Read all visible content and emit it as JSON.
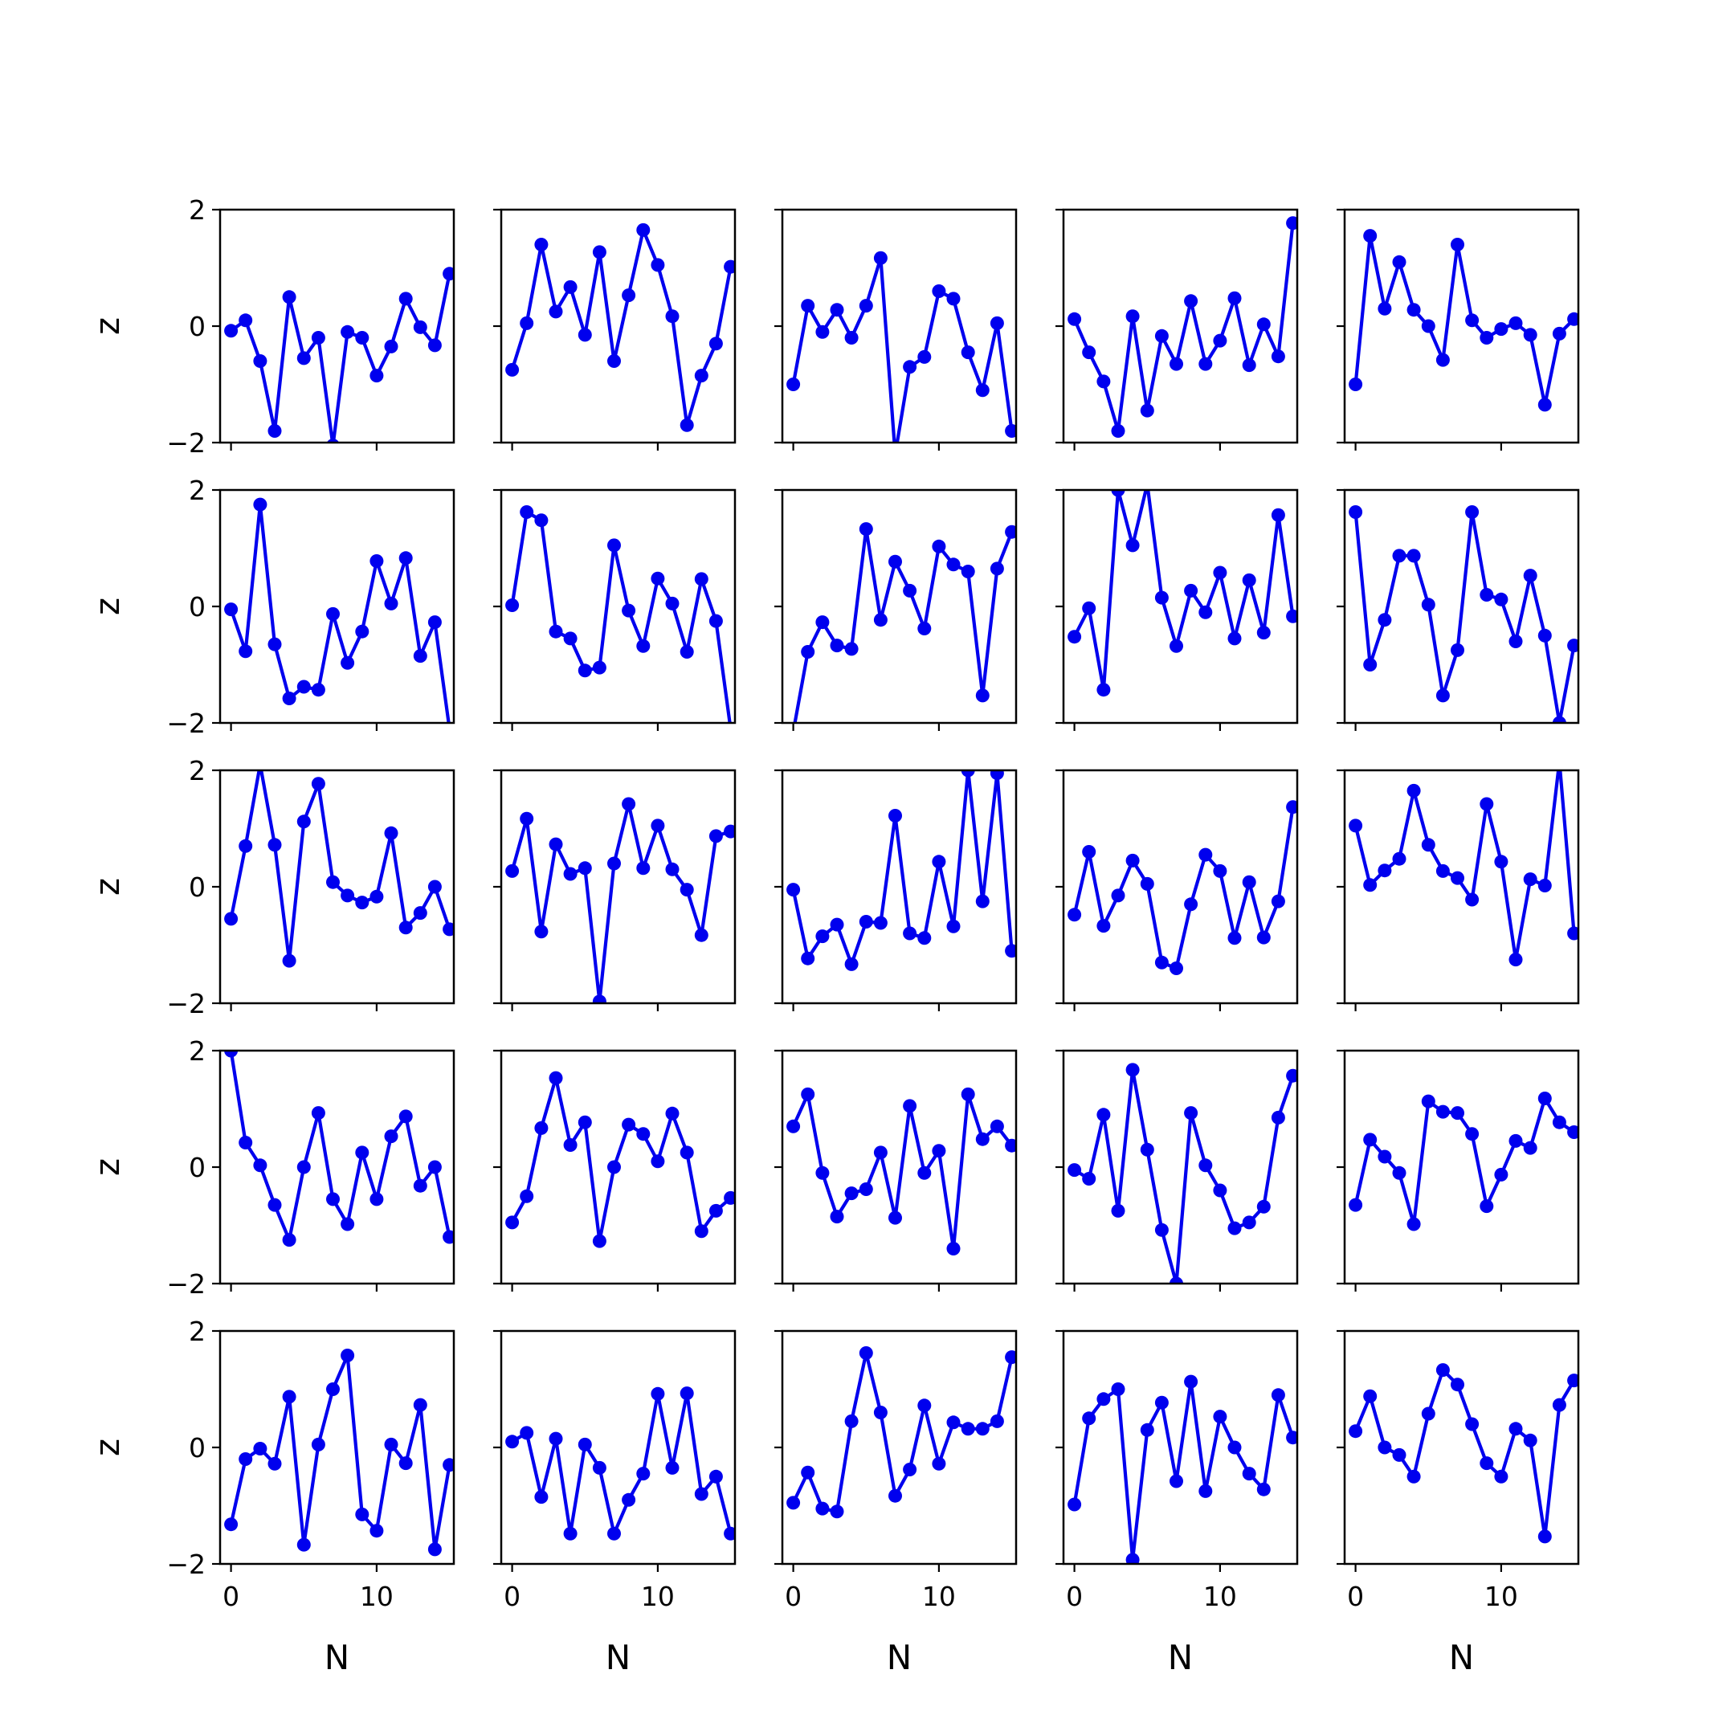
{
  "chart_data": {
    "type": "line",
    "layout": "5x5 grid of small multiples",
    "shared_x": true,
    "shared_y": true,
    "xlabel": "N",
    "ylabel": "z",
    "xlim": [
      -0.75,
      15.3
    ],
    "ylim": [
      -2,
      2
    ],
    "x_ticks": [
      0,
      10
    ],
    "x_tick_labels": [
      "0",
      "10"
    ],
    "y_ticks": [
      -2,
      0,
      2
    ],
    "y_tick_labels": [
      "−2",
      "0",
      "2"
    ],
    "grid": false,
    "legend": "none",
    "line_color": "#0000ee",
    "marker": "circle",
    "x": [
      0,
      1,
      2,
      3,
      4,
      5,
      6,
      7,
      8,
      9,
      10,
      11,
      12,
      13,
      14,
      15
    ],
    "panels": [
      [
        -0.08,
        0.1,
        -0.6,
        -1.8,
        0.5,
        -0.55,
        -0.2,
        -2.05,
        -0.1,
        -0.2,
        -0.85,
        -0.35,
        0.47,
        -0.02,
        -0.33,
        0.9
      ],
      [
        -0.75,
        0.05,
        1.4,
        0.25,
        0.67,
        -0.15,
        1.27,
        -0.6,
        0.53,
        1.65,
        1.05,
        0.17,
        -1.7,
        -0.85,
        -0.3,
        1.02
      ],
      [
        -1.0,
        0.35,
        -0.1,
        0.28,
        -0.2,
        0.35,
        1.17,
        -2.2,
        -0.7,
        -0.53,
        0.6,
        0.47,
        -0.45,
        -1.1,
        0.05,
        -1.8
      ],
      [
        0.12,
        -0.45,
        -0.95,
        -1.8,
        0.17,
        -1.45,
        -0.17,
        -0.65,
        0.43,
        -0.65,
        -0.25,
        0.48,
        -0.67,
        0.03,
        -0.52,
        1.77
      ],
      [
        -1.0,
        1.55,
        0.3,
        1.1,
        0.28,
        0.0,
        -0.58,
        1.4,
        0.1,
        -0.2,
        -0.05,
        0.05,
        -0.15,
        -1.35,
        -0.13,
        0.12
      ],
      [
        -0.05,
        -0.77,
        1.75,
        -0.65,
        -1.58,
        -1.38,
        -1.43,
        -0.13,
        -0.97,
        -0.43,
        0.78,
        0.05,
        0.83,
        -0.85,
        -0.27,
        -2.1
      ],
      [
        0.02,
        1.62,
        1.48,
        -0.43,
        -0.55,
        -1.1,
        -1.05,
        1.05,
        -0.07,
        -0.68,
        0.48,
        0.05,
        -0.78,
        0.47,
        -0.25,
        -2.1
      ],
      [
        -2.15,
        -0.78,
        -0.27,
        -0.67,
        -0.73,
        1.33,
        -0.23,
        0.77,
        0.27,
        -0.38,
        1.03,
        0.72,
        0.6,
        -1.53,
        0.65,
        1.28
      ],
      [
        -0.52,
        -0.03,
        -1.43,
        2.0,
        1.05,
        2.1,
        0.15,
        -0.68,
        0.27,
        -0.1,
        0.58,
        -0.55,
        0.45,
        -0.45,
        1.57,
        -0.17
      ],
      [
        1.62,
        -1.0,
        -0.23,
        0.87,
        0.87,
        0.03,
        -1.53,
        -0.75,
        1.62,
        0.2,
        0.12,
        -0.6,
        0.53,
        -0.5,
        -2.0,
        -0.67
      ],
      [
        -0.55,
        0.7,
        2.1,
        0.72,
        -1.27,
        1.12,
        1.77,
        0.08,
        -0.15,
        -0.27,
        -0.17,
        0.92,
        -0.7,
        -0.45,
        0.0,
        -0.73
      ],
      [
        0.27,
        1.17,
        -0.77,
        0.73,
        0.22,
        0.32,
        -1.97,
        0.4,
        1.42,
        0.32,
        1.05,
        0.3,
        -0.05,
        -0.83,
        0.87,
        0.95
      ],
      [
        -0.05,
        -1.23,
        -0.85,
        -0.65,
        -1.33,
        -0.6,
        -0.62,
        1.22,
        -0.8,
        -0.88,
        0.43,
        -0.68,
        2.0,
        -0.25,
        1.95,
        -1.1
      ],
      [
        -0.48,
        0.6,
        -0.67,
        -0.15,
        0.45,
        0.05,
        -1.3,
        -1.4,
        -0.3,
        0.55,
        0.27,
        -0.88,
        0.08,
        -0.87,
        -0.25,
        1.37
      ],
      [
        1.05,
        0.03,
        0.28,
        0.48,
        1.65,
        0.72,
        0.27,
        0.15,
        -0.22,
        1.42,
        0.43,
        -1.25,
        0.13,
        0.02,
        2.15,
        -0.8
      ],
      [
        2.0,
        0.42,
        0.03,
        -0.65,
        -1.25,
        0.0,
        0.93,
        -0.55,
        -0.98,
        0.25,
        -0.55,
        0.53,
        0.87,
        -0.32,
        0.0,
        -1.2
      ],
      [
        -0.95,
        -0.5,
        0.67,
        1.53,
        0.38,
        0.77,
        -1.27,
        0.0,
        0.73,
        0.57,
        0.1,
        0.92,
        0.25,
        -1.1,
        -0.75,
        -0.53
      ],
      [
        0.7,
        1.25,
        -0.1,
        -0.85,
        -0.45,
        -0.38,
        0.25,
        -0.87,
        1.05,
        -0.1,
        0.28,
        -1.4,
        1.25,
        0.48,
        0.7,
        0.37
      ],
      [
        -0.05,
        -0.2,
        0.9,
        -0.75,
        1.67,
        0.3,
        -1.08,
        -2.0,
        0.93,
        0.03,
        -0.4,
        -1.05,
        -0.95,
        -0.68,
        0.85,
        1.57
      ],
      [
        -0.65,
        0.47,
        0.18,
        -0.1,
        -0.98,
        1.13,
        0.95,
        0.93,
        0.57,
        -0.67,
        -0.13,
        0.45,
        0.33,
        1.18,
        0.77,
        0.6
      ],
      [
        -1.32,
        -0.2,
        -0.02,
        -0.28,
        0.87,
        -1.67,
        0.05,
        1.0,
        1.58,
        -1.15,
        -1.43,
        0.05,
        -0.27,
        0.73,
        -1.75,
        -0.3
      ],
      [
        0.1,
        0.25,
        -0.85,
        0.15,
        -1.48,
        0.05,
        -0.35,
        -1.48,
        -0.9,
        -0.45,
        0.92,
        -0.35,
        0.93,
        -0.8,
        -0.5,
        -1.48
      ],
      [
        -0.95,
        -0.43,
        -1.05,
        -1.1,
        0.45,
        1.62,
        0.6,
        -0.83,
        -0.38,
        0.72,
        -0.28,
        0.43,
        0.32,
        0.32,
        0.45,
        1.55
      ],
      [
        -0.98,
        0.5,
        0.83,
        1.0,
        -1.93,
        0.3,
        0.77,
        -0.58,
        1.13,
        -0.75,
        0.53,
        0.0,
        -0.45,
        -0.72,
        0.9,
        0.17
      ],
      [
        0.28,
        0.88,
        0.0,
        -0.13,
        -0.5,
        0.58,
        1.33,
        1.08,
        0.4,
        -0.27,
        -0.5,
        0.32,
        0.12,
        -1.53,
        0.73,
        1.15
      ]
    ]
  }
}
